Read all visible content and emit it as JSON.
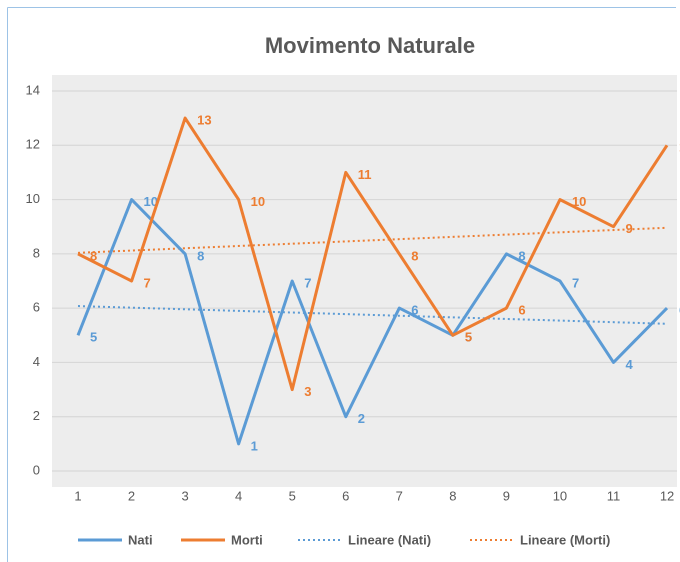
{
  "chart_data": {
    "type": "line",
    "title": "Movimento Naturale",
    "categories": [
      "1",
      "2",
      "3",
      "4",
      "5",
      "6",
      "7",
      "8",
      "9",
      "10",
      "11",
      "12"
    ],
    "series": [
      {
        "name": "Nati",
        "color": "#5b9bd5",
        "values": [
          5,
          10,
          8,
          1,
          7,
          2,
          6,
          5,
          8,
          7,
          4,
          6
        ]
      },
      {
        "name": "Morti",
        "color": "#ed7d31",
        "values": [
          8,
          7,
          13,
          10,
          3,
          11,
          8,
          5,
          6,
          10,
          9,
          12
        ]
      }
    ],
    "trendlines": [
      {
        "name": "Lineare (Nati)",
        "series": 0,
        "color": "#5b9bd5"
      },
      {
        "name": "Lineare (Morti)",
        "series": 1,
        "color": "#ed7d31"
      }
    ],
    "ylim": [
      0,
      14
    ],
    "yticks": [
      0,
      2,
      4,
      6,
      8,
      10,
      12,
      14
    ],
    "grid": true,
    "legend": "bottom"
  }
}
